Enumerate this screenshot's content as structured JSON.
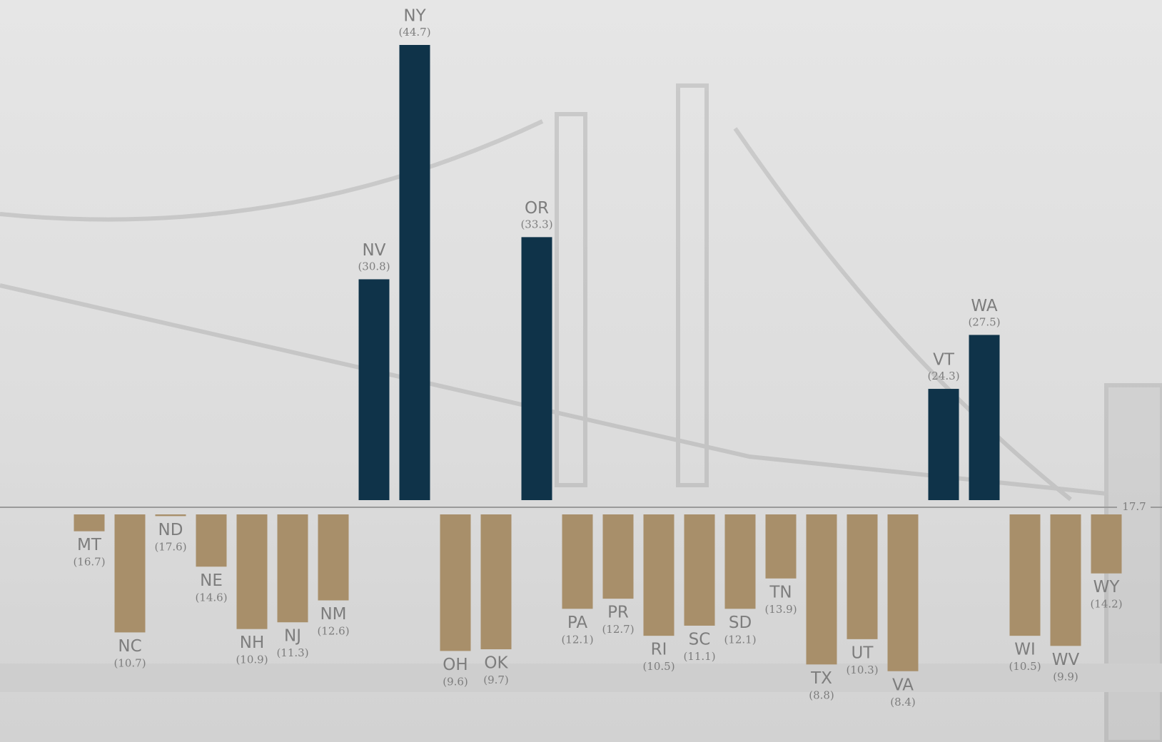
{
  "chart_data": {
    "type": "diverging-bar",
    "categories": [
      "MT",
      "NC",
      "ND",
      "NE",
      "NH",
      "NJ",
      "NM",
      "NV",
      "NY",
      "OH",
      "OK",
      "OR",
      "PA",
      "PR",
      "RI",
      "SC",
      "SD",
      "TN",
      "TX",
      "UT",
      "VA",
      "VT",
      "WA",
      "WI",
      "WV",
      "WY"
    ],
    "values": [
      16.7,
      10.7,
      17.6,
      14.6,
      10.9,
      11.3,
      12.6,
      30.8,
      44.7,
      9.6,
      9.7,
      33.3,
      12.1,
      12.7,
      10.5,
      11.1,
      12.1,
      13.9,
      8.8,
      10.3,
      8.4,
      24.3,
      27.5,
      10.5,
      9.9,
      14.2
    ],
    "value_labels": [
      "(16.7)",
      "(10.7)",
      "(17.6)",
      "(14.6)",
      "(10.9)",
      "(11.3)",
      "(12.6)",
      "(30.8)",
      "(44.7)",
      "(9.6)",
      "(9.7)",
      "(33.3)",
      "(12.1)",
      "(12.7)",
      "(10.5)",
      "(11.1)",
      "(12.1)",
      "(13.9)",
      "(8.8)",
      "(10.3)",
      "(8.4)",
      "(24.3)",
      "(27.5)",
      "(10.5)",
      "(9.9)",
      "(14.2)"
    ],
    "baseline": 17.7,
    "color_above": "#0f3349",
    "color_below": "#a88f6a"
  }
}
